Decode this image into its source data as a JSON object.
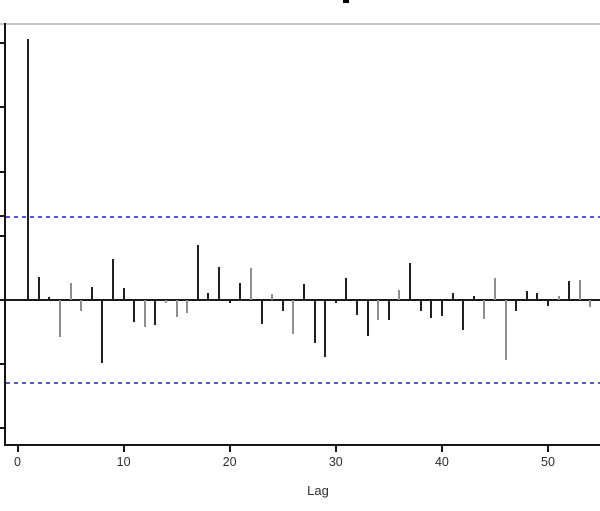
{
  "figure": {
    "description": "Cropped R graphics window showing an autocorrelation (ACF/PACF-style) stem plot; plot title and y-axis numeric labels are cut off by the crop",
    "title_fragment": "only the bottom descender tip of the cropped title glyph is visible at top center"
  },
  "chart_data": {
    "type": "bar",
    "subtype": "acf-stem-plot",
    "title": "",
    "xlabel": "Lag",
    "ylabel": "",
    "x_tick_labels": [
      "0",
      "10",
      "20",
      "30",
      "40",
      "50"
    ],
    "x_tick_values": [
      0,
      10,
      20,
      30,
      40,
      50
    ],
    "xlim_visible": [
      -1.3,
      55.2
    ],
    "ylim_visible": [
      -0.45,
      0.86
    ],
    "y_tick_values": [
      0.8,
      0.6,
      0.4,
      0.2,
      -0.2,
      -0.4
    ],
    "y_axis_labels_cropped": true,
    "grid": false,
    "zero_line": 0,
    "confidence_interval": 0.26,
    "confidence_line_style": "dashed",
    "confidence_line_color": "#5454d8",
    "spike_color_dark": "#1f1f1f",
    "spike_color_grey": "#8f8f8f",
    "lags": [
      1,
      2,
      3,
      4,
      5,
      6,
      7,
      8,
      9,
      10,
      11,
      12,
      13,
      14,
      15,
      16,
      17,
      18,
      19,
      20,
      21,
      22,
      23,
      24,
      25,
      26,
      27,
      28,
      29,
      30,
      31,
      32,
      33,
      34,
      35,
      36,
      37,
      38,
      39,
      40,
      41,
      42,
      43,
      44,
      45,
      46,
      47,
      48,
      49,
      50,
      51,
      52,
      53,
      54,
      55
    ],
    "values": [
      0.813,
      0.073,
      0.008,
      -0.116,
      0.053,
      -0.033,
      0.04,
      -0.197,
      0.129,
      0.038,
      -0.068,
      -0.085,
      -0.078,
      -0.008,
      -0.052,
      -0.042,
      0.171,
      0.021,
      0.104,
      -0.008,
      0.053,
      0.099,
      -0.075,
      0.019,
      -0.033,
      -0.107,
      0.05,
      -0.135,
      -0.179,
      -0.008,
      0.067,
      -0.046,
      -0.111,
      -0.061,
      -0.061,
      0.032,
      0.115,
      -0.033,
      -0.056,
      -0.051,
      0.021,
      -0.092,
      0.011,
      -0.059,
      0.07,
      -0.186,
      -0.035,
      0.029,
      0.021,
      -0.02,
      0.011,
      0.06,
      0.063,
      -0.022,
      -0.01
    ],
    "shades": [
      "d",
      "d",
      "d",
      "g",
      "g",
      "g",
      "d",
      "d",
      "d",
      "d",
      "d",
      "g",
      "d",
      "g",
      "g",
      "g",
      "d",
      "d",
      "d",
      "d",
      "d",
      "g",
      "d",
      "g",
      "d",
      "g",
      "d",
      "d",
      "d",
      "d",
      "d",
      "d",
      "d",
      "g",
      "d",
      "g",
      "d",
      "d",
      "d",
      "d",
      "d",
      "d",
      "d",
      "g",
      "g",
      "g",
      "d",
      "d",
      "d",
      "d",
      "g",
      "d",
      "g",
      "g",
      "g"
    ]
  }
}
